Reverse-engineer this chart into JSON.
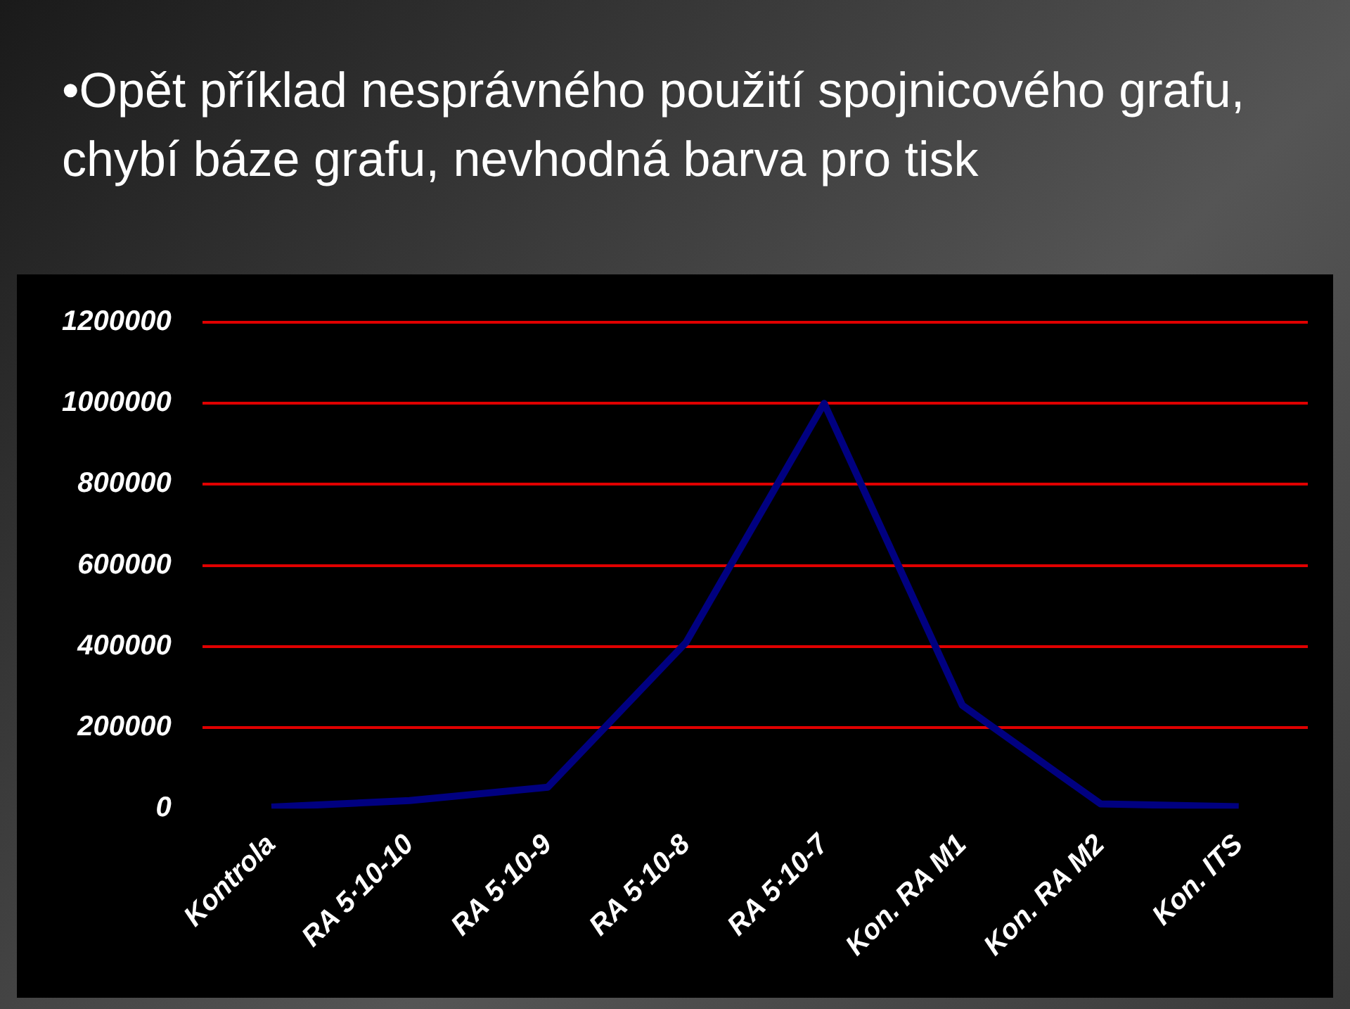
{
  "chart_data": {
    "type": "line",
    "title": "•Opět příklad nesprávného použití spojnicového grafu, chybí báze grafu, nevhodná barva pro tisk",
    "categories": [
      "Kontrola",
      "RA 5·10-10",
      "RA 5·10-9",
      "RA 5·10-8",
      "RA 5·10-7",
      "Kon. RA M1",
      "Kon. RA M2",
      "Kon. ITS"
    ],
    "series": [
      {
        "color": "#000080",
        "values": [
          4000,
          20000,
          53000,
          410000,
          1000000,
          255000,
          12000,
          5000
        ]
      }
    ],
    "ylim": [
      0,
      1200000
    ],
    "yticks": [
      0,
      200000,
      400000,
      600000,
      800000,
      1000000,
      1200000
    ],
    "grid": "y",
    "legend": false,
    "marker": "none",
    "line_style": "solid"
  }
}
